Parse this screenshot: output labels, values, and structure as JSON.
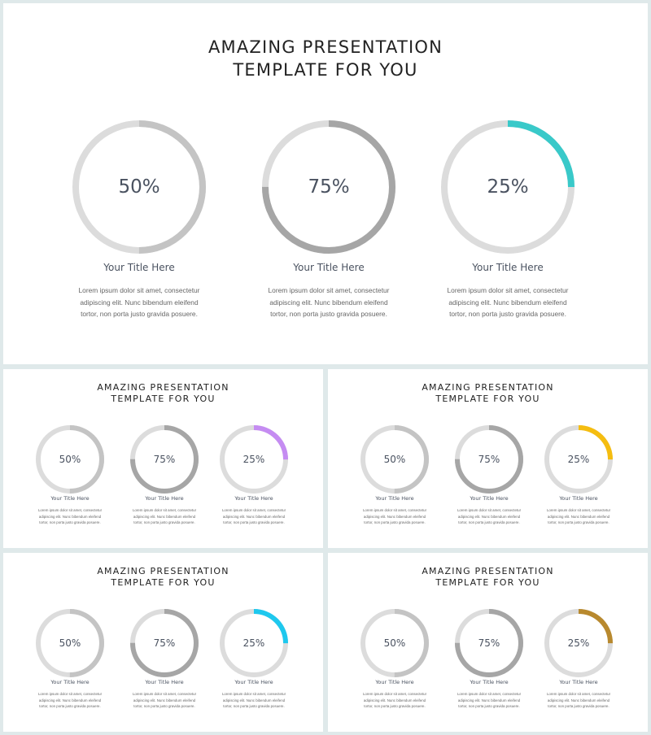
{
  "slides": [
    {
      "title_line1": "AMAZING PRESENTATION",
      "title_line2": "TEMPLATE FOR YOU",
      "accent": "#39c9c9",
      "items": [
        {
          "value": 50,
          "label": "50%",
          "title": "Your Title Here",
          "lines": [
            "Lorem ipsum dolor sit amet, consectetur",
            "adipiscing elit. Nunc bibendum eleifend",
            "tortor, non porta justo gravida posuere."
          ]
        },
        {
          "value": 75,
          "label": "75%",
          "title": "Your Title Here",
          "lines": [
            "Lorem ipsum dolor sit amet, consectetur",
            "adipiscing elit. Nunc bibendum eleifend",
            "tortor, non porta justo gravida posuere."
          ]
        },
        {
          "value": 25,
          "label": "25%",
          "title": "Your Title Here",
          "lines": [
            "Lorem ipsum dolor sit amet, consectetur",
            "adipiscing elit. Nunc bibendum eleifend",
            "tortor, non porta justo gravida posuere."
          ]
        }
      ]
    },
    {
      "title_line1": "AMAZING PRESENTATION",
      "title_line2": "TEMPLATE FOR YOU",
      "accent": "#c58cf2",
      "items": [
        {
          "value": 50,
          "label": "50%",
          "title": "Your Title Here",
          "lines": [
            "Lorem ipsum dolor sit amet, consectetur",
            "adipiscing elit. Nunc bibendum eleifend",
            "tortor, non porta justo gravida posuere."
          ]
        },
        {
          "value": 75,
          "label": "75%",
          "title": "Your Title Here",
          "lines": [
            "Lorem ipsum dolor sit amet, consectetur",
            "adipiscing elit. Nunc bibendum eleifend",
            "tortor, non porta justo gravida posuere."
          ]
        },
        {
          "value": 25,
          "label": "25%",
          "title": "Your Title Here",
          "lines": [
            "Lorem ipsum dolor sit amet, consectetur",
            "adipiscing elit. Nunc bibendum eleifend",
            "tortor, non porta justo gravida posuere."
          ]
        }
      ]
    },
    {
      "title_line1": "AMAZING PRESENTATION",
      "title_line2": "TEMPLATE FOR YOU",
      "accent": "#f5bd10",
      "items": [
        {
          "value": 50,
          "label": "50%",
          "title": "Your Title Here",
          "lines": [
            "Lorem ipsum dolor sit amet, consectetur",
            "adipiscing elit. Nunc bibendum eleifend",
            "tortor, non porta justo gravida posuere."
          ]
        },
        {
          "value": 75,
          "label": "75%",
          "title": "Your Title Here",
          "lines": [
            "Lorem ipsum dolor sit amet, consectetur",
            "adipiscing elit. Nunc bibendum eleifend",
            "tortor, non porta justo gravida posuere."
          ]
        },
        {
          "value": 25,
          "label": "25%",
          "title": "Your Title Here",
          "lines": [
            "Lorem ipsum dolor sit amet, consectetur",
            "adipiscing elit. Nunc bibendum eleifend",
            "tortor, non porta justo gravida posuere."
          ]
        }
      ]
    },
    {
      "title_line1": "AMAZING PRESENTATION",
      "title_line2": "TEMPLATE FOR YOU",
      "accent": "#1ec8ee",
      "items": [
        {
          "value": 50,
          "label": "50%",
          "title": "Your Title Here",
          "lines": [
            "Lorem ipsum dolor sit amet, consectetur",
            "adipiscing elit. Nunc bibendum eleifend",
            "tortor, non porta justo gravida posuere."
          ]
        },
        {
          "value": 75,
          "label": "75%",
          "title": "Your Title Here",
          "lines": [
            "Lorem ipsum dolor sit amet, consectetur",
            "adipiscing elit. Nunc bibendum eleifend",
            "tortor, non porta justo gravida posuere."
          ]
        },
        {
          "value": 25,
          "label": "25%",
          "title": "Your Title Here",
          "lines": [
            "Lorem ipsum dolor sit amet, consectetur",
            "adipiscing elit. Nunc bibendum eleifend",
            "tortor, non porta justo gravida posuere."
          ]
        }
      ]
    },
    {
      "title_line1": "AMAZING PRESENTATION",
      "title_line2": "TEMPLATE FOR YOU",
      "accent": "#b8892e",
      "items": [
        {
          "value": 50,
          "label": "50%",
          "title": "Your Title Here",
          "lines": [
            "Lorem ipsum dolor sit amet, consectetur",
            "adipiscing elit. Nunc bibendum eleifend",
            "tortor, non porta justo gravida posuere."
          ]
        },
        {
          "value": 75,
          "label": "75%",
          "title": "Your Title Here",
          "lines": [
            "Lorem ipsum dolor sit amet, consectetur",
            "adipiscing elit. Nunc bibendum eleifend",
            "tortor, non porta justo gravida posuere."
          ]
        },
        {
          "value": 25,
          "label": "25%",
          "title": "Your Title Here",
          "lines": [
            "Lorem ipsum dolor sit amet, consectetur",
            "adipiscing elit. Nunc bibendum eleifend",
            "tortor, non porta justo gravida posuere."
          ]
        }
      ]
    }
  ],
  "colors": {
    "track": "#dcdcdc",
    "fill_50": "#c4c4c4",
    "fill_75": "#a6a6a6"
  }
}
